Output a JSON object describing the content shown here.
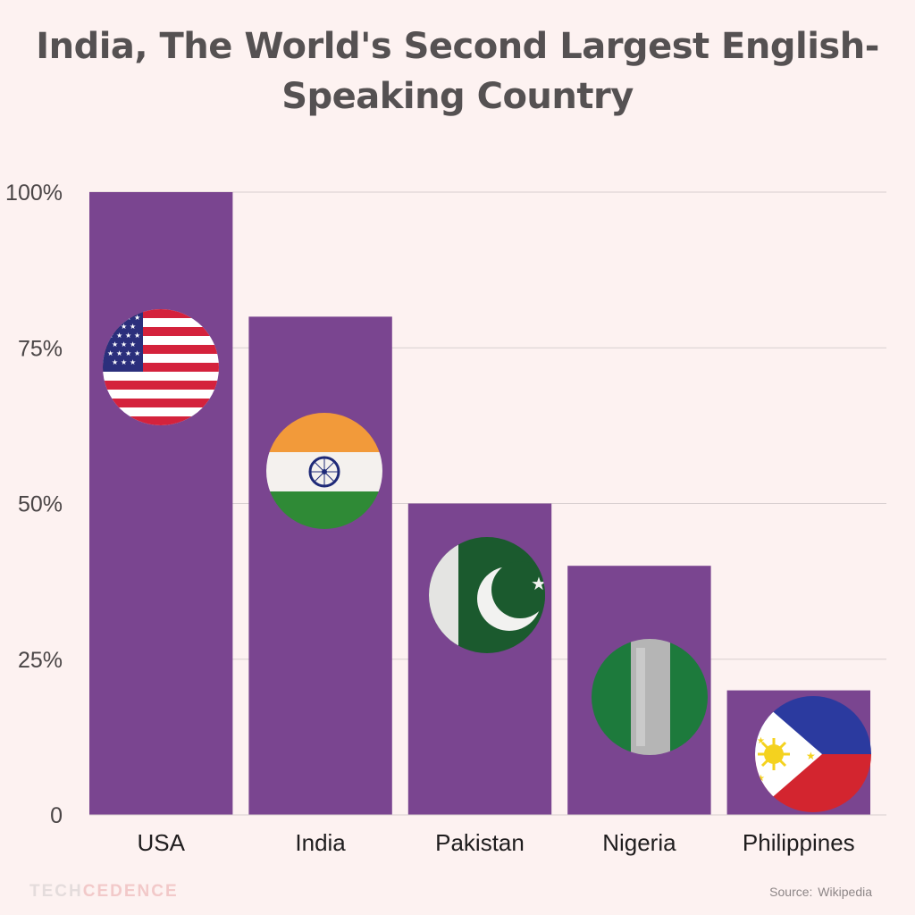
{
  "title": {
    "line1": "India, The World's Second Largest English-",
    "line2": "Speaking Country"
  },
  "chart_data": {
    "type": "bar",
    "categories": [
      "USA",
      "India",
      "Pakistan",
      "Nigeria",
      "Philippines"
    ],
    "values": [
      100,
      80,
      50,
      40,
      20
    ],
    "flags": [
      "usa-flag-icon",
      "india-flag-icon",
      "pakistan-flag-icon",
      "nigeria-flag-icon",
      "philippines-flag-icon"
    ],
    "ylim": [
      0,
      100
    ],
    "yticks": [
      0,
      25,
      50,
      75,
      100
    ],
    "ytick_labels": [
      "0",
      "25%",
      "50%",
      "75%",
      "100%"
    ],
    "grid": true,
    "bar_color": "#7a4590"
  },
  "footer": {
    "brand_part1": "TECH",
    "brand_part2": "CEDENCE",
    "source": "Source:  Wikipedia"
  }
}
